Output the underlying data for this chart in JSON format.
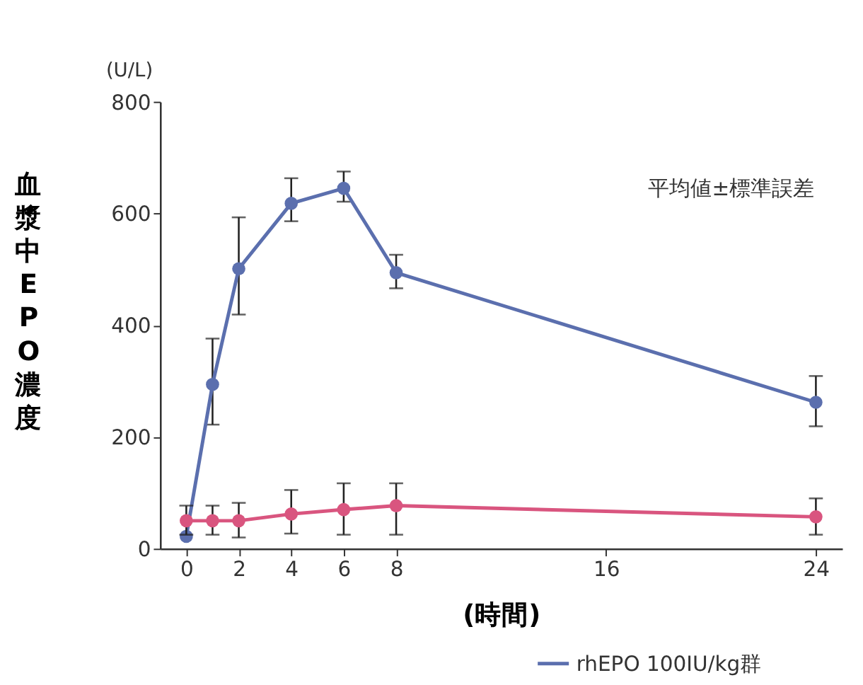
{
  "chart_data": {
    "type": "line",
    "xlabel": "(時間)",
    "ylabel": "血漿中EPO濃度",
    "annotations": [
      "(U/L)",
      "平均値±標準誤差"
    ],
    "x": [
      0,
      1,
      2,
      4,
      6,
      8,
      24
    ],
    "series": [
      {
        "name": "rhEPO 100IU/kg群",
        "color": "#5b6fae",
        "values": [
          22,
          294,
          501,
          618,
          645,
          494,
          262
        ],
        "errors": [
          null,
          [
            222,
            376
          ],
          [
            419,
            593
          ],
          [
            586,
            663
          ],
          [
            621,
            675
          ],
          [
            466,
            526
          ],
          [
            219,
            309
          ]
        ]
      },
      {
        "color": "#d9557f",
        "values": [
          50,
          50,
          50,
          62,
          70,
          77,
          57
        ],
        "errors": [
          [
            25,
            77
          ],
          [
            25,
            77
          ],
          [
            20,
            82
          ],
          [
            27,
            105
          ],
          [
            25,
            117
          ],
          [
            25,
            117
          ],
          [
            25,
            90
          ]
        ]
      }
    ],
    "xlim": [
      -1,
      25
    ],
    "xticks": [
      0,
      2,
      4,
      6,
      8,
      16,
      24
    ],
    "ylim": [
      0,
      800
    ],
    "yticks": [
      0,
      200,
      400,
      600,
      800
    ],
    "grid": false,
    "legend": "bottom right",
    "marker": "circle",
    "line_style": "solid"
  }
}
